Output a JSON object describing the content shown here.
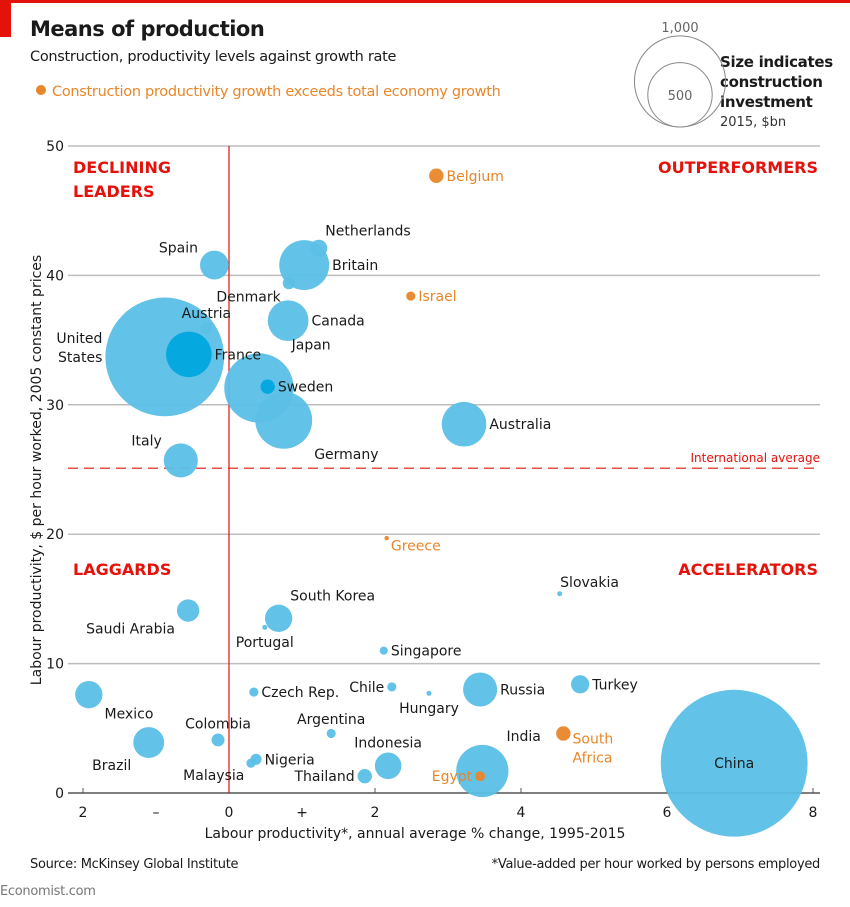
{
  "header": {
    "title": "Means of production",
    "subtitle": "Construction, productivity levels against growth rate",
    "legend_orange": "Construction productivity growth exceeds total economy growth"
  },
  "size_legend": {
    "title": "Size indicates construction investment",
    "unit": "2015, $bn",
    "large_label": "1,000",
    "small_label": "500",
    "large_value": 1000,
    "small_value": 500
  },
  "footer": {
    "source": "Source: McKinsey Global Institute",
    "footnote": "*Value-added per hour worked by persons employed",
    "brand": "Economist.com"
  },
  "colors": {
    "blue": "#5bbfe6",
    "blue_dark": "#00a8de",
    "orange": "#e8862a",
    "red": "#e3120b",
    "grid": "#bdbdbd",
    "text": "#1a1a1a"
  },
  "chart_data": {
    "type": "scatter",
    "title": "Means of production",
    "subtitle": "Construction, productivity levels against growth rate",
    "xlabel": "Labour productivity*, annual average % change, 1995-2015",
    "ylabel": "Labour productivity, $ per hour worked, 2005 constant prices",
    "xlim": [
      -2,
      8
    ],
    "ylim": [
      0,
      50
    ],
    "x_ticks": [
      {
        "value": -2,
        "label": "2"
      },
      {
        "value": -1,
        "label": "–"
      },
      {
        "value": 0,
        "label": "0"
      },
      {
        "value": 1,
        "label": "+"
      },
      {
        "value": 2,
        "label": "2"
      },
      {
        "value": 4,
        "label": "4"
      },
      {
        "value": 6,
        "label": "6"
      },
      {
        "value": 8,
        "label": "8"
      }
    ],
    "y_ticks": [
      0,
      10,
      20,
      30,
      40,
      50
    ],
    "grid": true,
    "reference_lines": [
      {
        "axis": "y",
        "value": 25.1,
        "label": "International average",
        "style": "dashed"
      },
      {
        "axis": "x",
        "value": 0,
        "label": "",
        "style": "solid"
      }
    ],
    "quadrant_labels": [
      {
        "text": "DECLINING",
        "text2": "LEADERS",
        "position": "top-left"
      },
      {
        "text": "OUTPERFORMERS",
        "text2": "",
        "position": "top-right"
      },
      {
        "text": "LAGGARDS",
        "text2": "",
        "position": "bottom-left"
      },
      {
        "text": "ACCELERATORS",
        "text2": "",
        "position": "bottom-right"
      }
    ],
    "size_variable": "Construction investment, 2015, $bn",
    "points": [
      {
        "name": "Belgium",
        "x": 2.84,
        "y": 47.7,
        "size": 25,
        "highlight": true,
        "label_pos": "right"
      },
      {
        "name": "Netherlands",
        "x": 1.23,
        "y": 42.1,
        "size": 35,
        "highlight": false,
        "label_pos": "upright"
      },
      {
        "name": "Spain",
        "x": -0.2,
        "y": 40.8,
        "size": 100,
        "highlight": false,
        "label_pos": "upleft"
      },
      {
        "name": "Britain",
        "x": 1.03,
        "y": 40.8,
        "size": 300,
        "highlight": false,
        "label_pos": "right"
      },
      {
        "name": "Denmark",
        "x": 0.82,
        "y": 39.4,
        "size": 18,
        "highlight": false,
        "label_pos": "belowleft"
      },
      {
        "name": "Israel",
        "x": 2.49,
        "y": 38.4,
        "size": 10,
        "highlight": true,
        "label_pos": "right"
      },
      {
        "name": "Austria",
        "x": -0.31,
        "y": 35.9,
        "size": 15,
        "highlight": false,
        "label_pos": "above"
      },
      {
        "name": "Canada",
        "x": 0.81,
        "y": 36.5,
        "size": 200,
        "highlight": false,
        "label_pos": "right"
      },
      {
        "name": "United States",
        "x": -0.88,
        "y": 33.7,
        "size": 1700,
        "highlight": false,
        "label_pos": "left"
      },
      {
        "name": "France",
        "x": -0.55,
        "y": 33.9,
        "size": 250,
        "highlight": false,
        "label_pos": "right"
      },
      {
        "name": "Japan",
        "x": 0.41,
        "y": 31.3,
        "size": 580,
        "highlight": false,
        "label_pos": "upright"
      },
      {
        "name": "Sweden",
        "x": 0.53,
        "y": 31.4,
        "size": 25,
        "highlight": false,
        "label_pos": "right"
      },
      {
        "name": "Germany",
        "x": 0.75,
        "y": 28.8,
        "size": 390,
        "highlight": false,
        "label_pos": "belowright"
      },
      {
        "name": "Australia",
        "x": 3.22,
        "y": 28.5,
        "size": 240,
        "highlight": false,
        "label_pos": "right"
      },
      {
        "name": "Italy",
        "x": -0.66,
        "y": 25.7,
        "size": 140,
        "highlight": false,
        "label_pos": "upleft"
      },
      {
        "name": "Greece",
        "x": 2.16,
        "y": 19.7,
        "size": 2,
        "highlight": true,
        "label_pos": "belowright"
      },
      {
        "name": "Slovakia",
        "x": 4.53,
        "y": 15.4,
        "size": 3,
        "highlight": false,
        "label_pos": "upright"
      },
      {
        "name": "Saudi Arabia",
        "x": -0.56,
        "y": 14.1,
        "size": 60,
        "highlight": false,
        "label_pos": "belowleft"
      },
      {
        "name": "South Korea",
        "x": 0.68,
        "y": 13.5,
        "size": 90,
        "highlight": false,
        "label_pos": "upright"
      },
      {
        "name": "Portugal",
        "x": 0.49,
        "y": 12.8,
        "size": 3,
        "highlight": false,
        "label_pos": "below"
      },
      {
        "name": "Singapore",
        "x": 2.12,
        "y": 11.0,
        "size": 8,
        "highlight": false,
        "label_pos": "right"
      },
      {
        "name": "Mexico",
        "x": -1.92,
        "y": 7.6,
        "size": 90,
        "highlight": false,
        "label_pos": "belowright"
      },
      {
        "name": "Czech Rep.",
        "x": 0.34,
        "y": 7.8,
        "size": 10,
        "highlight": false,
        "label_pos": "right"
      },
      {
        "name": "Chile",
        "x": 2.23,
        "y": 8.2,
        "size": 10,
        "highlight": false,
        "label_pos": "left"
      },
      {
        "name": "Hungary",
        "x": 2.74,
        "y": 7.7,
        "size": 3,
        "highlight": false,
        "label_pos": "below"
      },
      {
        "name": "Russia",
        "x": 3.44,
        "y": 8.0,
        "size": 140,
        "highlight": false,
        "label_pos": "right"
      },
      {
        "name": "Turkey",
        "x": 4.81,
        "y": 8.4,
        "size": 40,
        "highlight": false,
        "label_pos": "right"
      },
      {
        "name": "Argentina",
        "x": 1.4,
        "y": 4.6,
        "size": 10,
        "highlight": false,
        "label_pos": "above"
      },
      {
        "name": "Colombia",
        "x": -0.15,
        "y": 4.1,
        "size": 20,
        "highlight": false,
        "label_pos": "above"
      },
      {
        "name": "Brazil",
        "x": -1.1,
        "y": 3.9,
        "size": 115,
        "highlight": false,
        "label_pos": "belowleft"
      },
      {
        "name": "South Africa",
        "x": 4.58,
        "y": 4.6,
        "size": 25,
        "highlight": true,
        "label_pos": "belowright"
      },
      {
        "name": "Nigeria",
        "x": 0.37,
        "y": 2.6,
        "size": 15,
        "highlight": false,
        "label_pos": "right"
      },
      {
        "name": "Malaysia",
        "x": 0.3,
        "y": 2.3,
        "size": 10,
        "highlight": false,
        "label_pos": "belowleft"
      },
      {
        "name": "Indonesia",
        "x": 2.18,
        "y": 2.1,
        "size": 85,
        "highlight": false,
        "label_pos": "above"
      },
      {
        "name": "Thailand",
        "x": 1.86,
        "y": 1.3,
        "size": 25,
        "highlight": false,
        "label_pos": "left"
      },
      {
        "name": "India",
        "x": 3.47,
        "y": 1.7,
        "size": 330,
        "highlight": false,
        "label_pos": "upright"
      },
      {
        "name": "Egypt",
        "x": 3.44,
        "y": 1.3,
        "size": 12,
        "highlight": true,
        "label_pos": "left"
      },
      {
        "name": "China",
        "x": 6.92,
        "y": 2.3,
        "size": 2600,
        "highlight": false,
        "label_pos": "center"
      }
    ]
  }
}
